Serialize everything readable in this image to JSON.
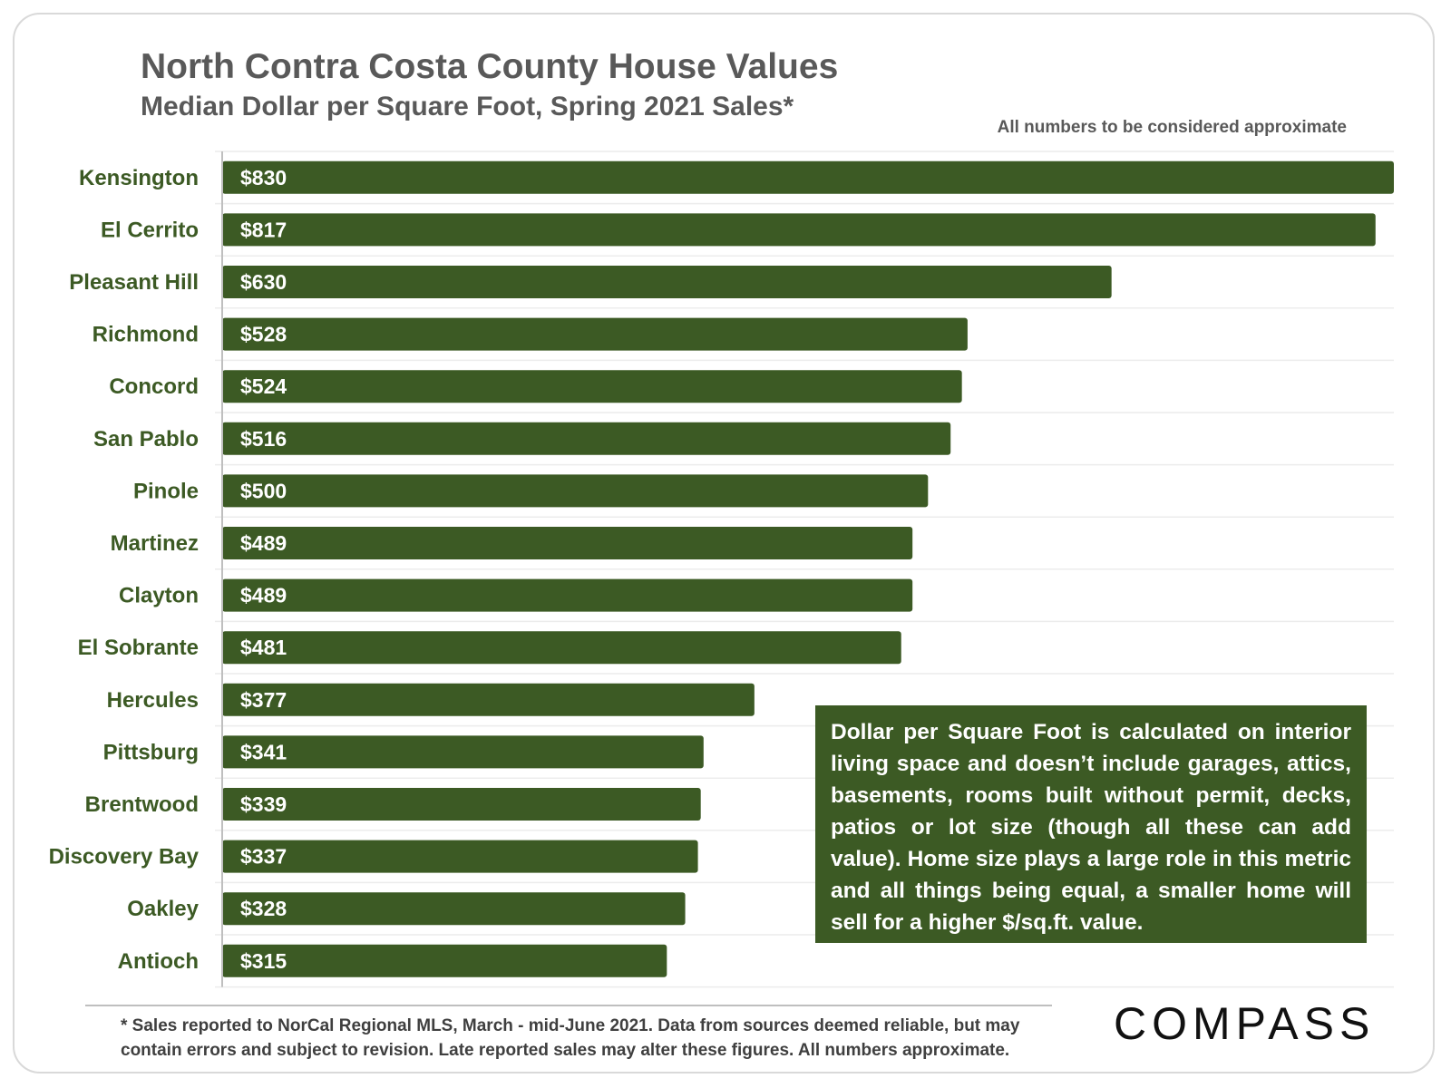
{
  "chart_data": {
    "type": "bar",
    "orientation": "horizontal",
    "title": "North Contra Costa County House Values",
    "subtitle": "Median Dollar per Square Foot, Spring 2021 Sales*",
    "categories": [
      "Kensington",
      "El Cerrito",
      "Pleasant Hill",
      "Richmond",
      "Concord",
      "San Pablo",
      "Pinole",
      "Martinez",
      "Clayton",
      "El Sobrante",
      "Hercules",
      "Pittsburg",
      "Brentwood",
      "Discovery Bay",
      "Oakley",
      "Antioch"
    ],
    "values": [
      830,
      817,
      630,
      528,
      524,
      516,
      500,
      489,
      489,
      481,
      377,
      341,
      339,
      337,
      328,
      315
    ],
    "value_labels": [
      "$830",
      "$817",
      "$630",
      "$528",
      "$524",
      "$516",
      "$500",
      "$489",
      "$489",
      "$481",
      "$377",
      "$341",
      "$339",
      "$337",
      "$328",
      "$315"
    ],
    "xlim": [
      0,
      830
    ],
    "xlabel": "",
    "ylabel": "",
    "grid": true,
    "legend": "none",
    "bar_color": "#3c5a24"
  },
  "note": "All numbers to be considered approximate",
  "callout": "Dollar per Square Foot is calculated on interior living space and doesn’t include garages, attics, basements, rooms built without permit, decks, patios or lot size (though all these can add value). Home size plays a large role in this metric and all things being equal, a smaller home will sell for a higher $/sq.ft. value.",
  "footnote": "* Sales reported to NorCal Regional MLS, March - mid-June 2021. Data from sources deemed reliable, but may contain errors and subject to revision. Late reported sales may alter these figures. All numbers approximate.",
  "logo_text": "COMPASS",
  "colors": {
    "bar": "#3c5a24",
    "title": "#595959",
    "label": "#3c5a24"
  }
}
